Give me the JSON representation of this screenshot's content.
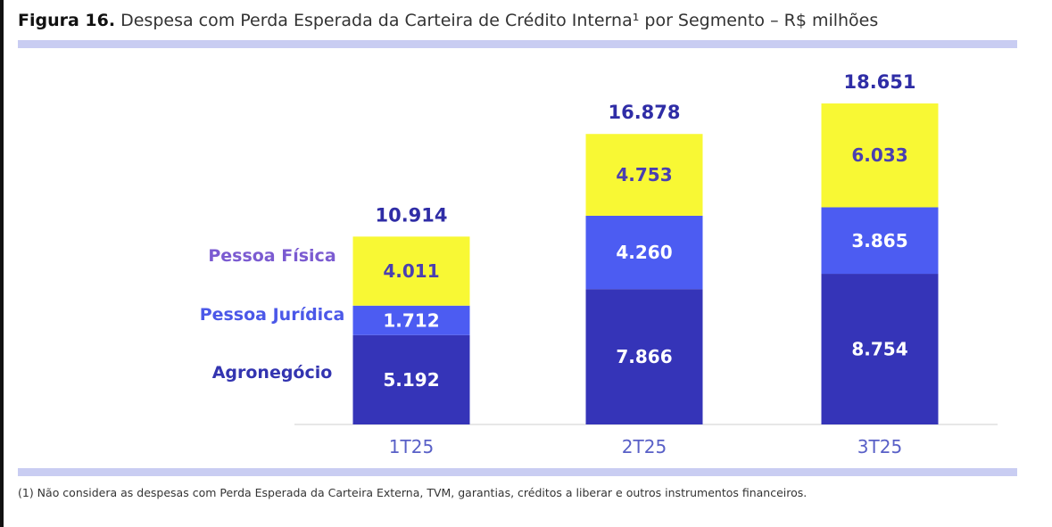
{
  "figure": {
    "label": "Figura 16.",
    "title": "Despesa com Perda Esperada da Carteira de Crédito Interna¹ por Segmento – R$ milhões"
  },
  "footnote": "(1) Não considera as despesas com Perda Esperada da Carteira Externa, TVM, garantias, créditos a liberar e outros instrumentos financeiros.",
  "colors": {
    "agronegocio": "#3534b8",
    "pessoa_juridica": "#4c5cf2",
    "pessoa_fisica": "#f8f834",
    "total_label": "#2f2da6",
    "axis_label": "#5960c7",
    "legend_pf": "#7b5bd1",
    "legend_pj": "#4b58e8",
    "legend_agro": "#3334b0"
  },
  "chart_data": {
    "type": "bar",
    "stacked": true,
    "categories": [
      "1T25",
      "2T25",
      "3T25"
    ],
    "series": [
      {
        "name": "Agronegócio",
        "key": "agronegocio",
        "values": [
          5.192,
          7.866,
          8.754
        ],
        "labels": [
          "5.192",
          "7.866",
          "8.754"
        ]
      },
      {
        "name": "Pessoa Jurídica",
        "key": "pessoa_juridica",
        "values": [
          1.712,
          4.26,
          3.865
        ],
        "labels": [
          "1.712",
          "4.260",
          "3.865"
        ]
      },
      {
        "name": "Pessoa Física",
        "key": "pessoa_fisica",
        "values": [
          4.011,
          4.753,
          6.033
        ],
        "labels": [
          "4.011",
          "4.753",
          "6.033"
        ]
      }
    ],
    "totals": [
      "10.914",
      "16.878",
      "18.651"
    ],
    "legend_labels": [
      "Pessoa Física",
      "Pessoa Jurídica",
      "Agronegócio"
    ],
    "legend_position": "left",
    "grid": false
  }
}
